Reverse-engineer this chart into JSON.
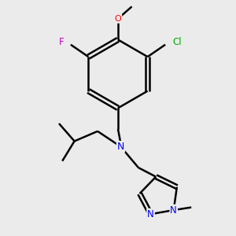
{
  "background_color": "#ebebeb",
  "bond_color": "#000000",
  "bond_width": 1.8,
  "atom_colors": {
    "N": "#0000ff",
    "O": "#ff0000",
    "F": "#cc00cc",
    "Cl": "#00aa00",
    "C": "#000000",
    "H": "#000000"
  },
  "figsize": [
    3.0,
    3.0
  ],
  "dpi": 100
}
